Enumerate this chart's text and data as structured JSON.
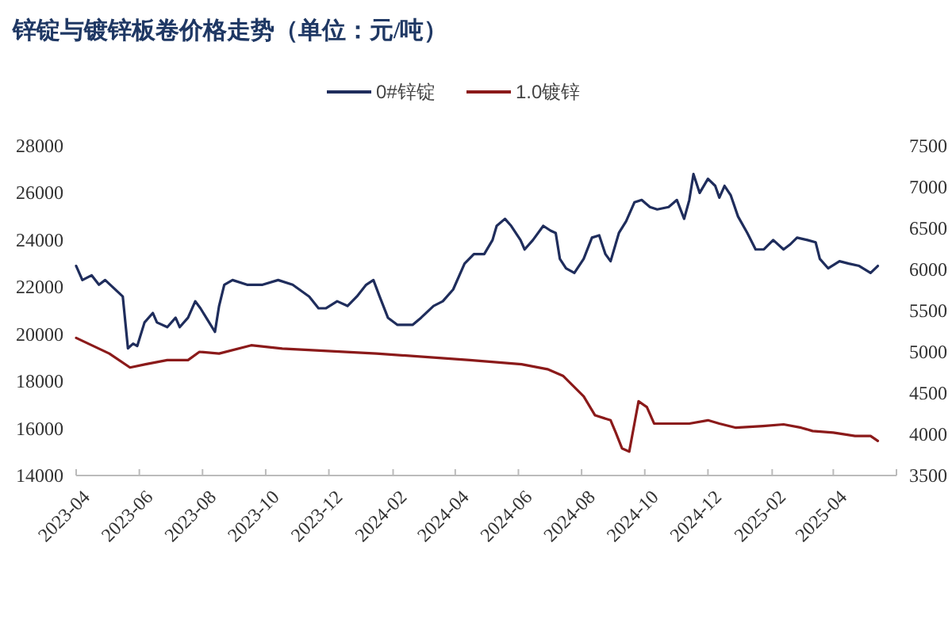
{
  "chart_data": {
    "type": "line",
    "title": "锌锭与镀锌板卷价格走势（单位：元/吨）",
    "legend": "top",
    "xlim": [
      "2023-04-01",
      "2025-06-01"
    ],
    "xticks": [
      {
        "value": "2023-04",
        "label": "2023-04"
      },
      {
        "value": "2023-06",
        "label": "2023-06"
      },
      {
        "value": "2023-08",
        "label": "2023-08"
      },
      {
        "value": "2023-10",
        "label": "2023-10"
      },
      {
        "value": "2023-12",
        "label": "2023-12"
      },
      {
        "value": "2024-02",
        "label": "2024-02"
      },
      {
        "value": "2024-04",
        "label": "2024-04"
      },
      {
        "value": "2024-06",
        "label": "2024-06"
      },
      {
        "value": "2024-08",
        "label": "2024-08"
      },
      {
        "value": "2024-10",
        "label": "2024-10"
      },
      {
        "value": "2024-12",
        "label": "2024-12"
      },
      {
        "value": "2025-02",
        "label": "2025-02"
      },
      {
        "value": "2025-04",
        "label": "2025-04"
      },
      {
        "value": "2025-06",
        "label": null
      }
    ],
    "ylim": [
      14000,
      28000
    ],
    "yticks": [
      14000,
      16000,
      18000,
      20000,
      22000,
      24000,
      26000,
      28000
    ],
    "y2lim": [
      3500,
      7500
    ],
    "y2ticks": [
      3500,
      4000,
      4500,
      5000,
      5500,
      6000,
      6500,
      7000,
      7500
    ],
    "series": [
      {
        "name": "0#锌锭",
        "color": "#1f2d5c",
        "axis": "y",
        "x": [
          "2023-04-01",
          "2023-04-07",
          "2023-04-16",
          "2023-04-23",
          "2023-04-29",
          "2023-05-16",
          "2023-05-21",
          "2023-05-26",
          "2023-05-30",
          "2023-06-06",
          "2023-06-14",
          "2023-06-18",
          "2023-06-28",
          "2023-07-06",
          "2023-07-10",
          "2023-07-18",
          "2023-07-25",
          "2023-07-30",
          "2023-08-06",
          "2023-08-13",
          "2023-08-17",
          "2023-08-22",
          "2023-08-30",
          "2023-09-13",
          "2023-09-28",
          "2023-10-13",
          "2023-10-27",
          "2023-11-12",
          "2023-11-21",
          "2023-11-28",
          "2023-12-09",
          "2023-12-19",
          "2023-12-28",
          "2024-01-06",
          "2024-01-13",
          "2024-01-19",
          "2024-01-27",
          "2024-02-05",
          "2024-02-20",
          "2024-02-28",
          "2024-03-11",
          "2024-03-20",
          "2024-03-30",
          "2024-04-10",
          "2024-04-19",
          "2024-04-29",
          "2024-05-07",
          "2024-05-11",
          "2024-05-19",
          "2024-05-25",
          "2024-06-03",
          "2024-06-07",
          "2024-06-15",
          "2024-06-25",
          "2024-07-02",
          "2024-07-07",
          "2024-07-11",
          "2024-07-17",
          "2024-07-25",
          "2024-08-03",
          "2024-08-11",
          "2024-08-18",
          "2024-08-24",
          "2024-08-29",
          "2024-09-06",
          "2024-09-13",
          "2024-09-21",
          "2024-09-28",
          "2024-10-06",
          "2024-10-13",
          "2024-10-24",
          "2024-11-01",
          "2024-11-08",
          "2024-11-13",
          "2024-11-17",
          "2024-11-23",
          "2024-12-01",
          "2024-12-08",
          "2024-12-12",
          "2024-12-17",
          "2024-12-23",
          "2024-12-30",
          "2025-01-08",
          "2025-01-16",
          "2025-01-24",
          "2025-02-02",
          "2025-02-12",
          "2025-02-18",
          "2025-02-25",
          "2025-03-07",
          "2025-03-15",
          "2025-03-19",
          "2025-03-27",
          "2025-04-07",
          "2025-04-16",
          "2025-04-26",
          "2025-05-07",
          "2025-05-14"
        ],
        "values": [
          22900,
          22300,
          22500,
          22100,
          22300,
          21600,
          19400,
          19600,
          19500,
          20500,
          20900,
          20500,
          20300,
          20700,
          20300,
          20700,
          21400,
          21100,
          20600,
          20100,
          21200,
          22100,
          22300,
          22100,
          22100,
          22300,
          22100,
          21600,
          21100,
          21100,
          21400,
          21200,
          21600,
          22100,
          22300,
          21600,
          20700,
          20400,
          20400,
          20700,
          21200,
          21400,
          21900,
          23000,
          23400,
          23400,
          24000,
          24600,
          24900,
          24600,
          24000,
          23600,
          24000,
          24600,
          24400,
          24300,
          23200,
          22800,
          22600,
          23200,
          24100,
          24200,
          23400,
          23100,
          24300,
          24800,
          25600,
          25700,
          25400,
          25300,
          25400,
          25700,
          24900,
          25700,
          26800,
          26000,
          26600,
          26300,
          25800,
          26300,
          25900,
          25000,
          24300,
          23600,
          23600,
          24000,
          23600,
          23800,
          24100,
          24000,
          23900,
          23200,
          22800,
          23100,
          23000,
          22900,
          22600,
          22900
        ]
      },
      {
        "name": "1.0镀锌",
        "color": "#8b1a1a",
        "axis": "y2",
        "x": [
          "2023-04-01",
          "2023-04-16",
          "2023-05-03",
          "2023-05-23",
          "2023-06-07",
          "2023-06-28",
          "2023-07-18",
          "2023-07-29",
          "2023-08-17",
          "2023-09-17",
          "2023-10-17",
          "2024-01-16",
          "2024-04-15",
          "2024-06-04",
          "2024-06-29",
          "2024-07-14",
          "2024-08-03",
          "2024-08-14",
          "2024-08-29",
          "2024-09-03",
          "2024-09-09",
          "2024-09-16",
          "2024-09-21",
          "2024-09-25",
          "2024-10-03",
          "2024-10-10",
          "2024-10-24",
          "2024-11-13",
          "2024-12-01",
          "2024-12-12",
          "2024-12-28",
          "2025-01-23",
          "2025-02-12",
          "2025-03-01",
          "2025-03-12",
          "2025-04-01",
          "2025-04-22",
          "2025-05-07",
          "2025-05-14"
        ],
        "values": [
          5170,
          5080,
          4980,
          4810,
          4850,
          4900,
          4900,
          5000,
          4980,
          5080,
          5040,
          4980,
          4900,
          4850,
          4790,
          4710,
          4460,
          4230,
          4170,
          4020,
          3830,
          3790,
          4130,
          4400,
          4330,
          4130,
          4130,
          4130,
          4170,
          4130,
          4080,
          4100,
          4120,
          4080,
          4040,
          4020,
          3980,
          3980,
          3920
        ]
      }
    ]
  }
}
